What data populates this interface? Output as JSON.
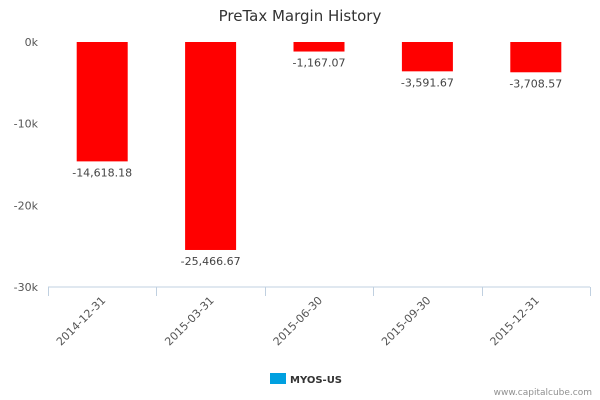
{
  "chart_data": {
    "type": "bar",
    "title": "PreTax Margin History",
    "categories": [
      "2014-12-31",
      "2015-03-31",
      "2015-06-30",
      "2015-09-30",
      "2015-12-31"
    ],
    "series": [
      {
        "name": "MYOS-US",
        "values": [
          -14618.18,
          -25466.67,
          -1167.07,
          -3591.67,
          -3708.57
        ],
        "data_labels": [
          "-14,618.18",
          "-25,466.67",
          "-1,167.07",
          "-3,591.67",
          "-3,708.57"
        ]
      }
    ],
    "yticks": [
      0,
      -10000,
      -20000,
      -30000
    ],
    "ytick_labels": [
      "0k",
      "-10k",
      "-20k",
      "-30k"
    ],
    "ylim": [
      -30000,
      0
    ],
    "xlabel": "",
    "ylabel": "",
    "legend_position": "bottom-center",
    "colors": {
      "bar": "#ff0000",
      "legend_swatch": "#00a0e0",
      "axis": "#c0d0e0"
    }
  },
  "credit": "www.capitalcube.com"
}
